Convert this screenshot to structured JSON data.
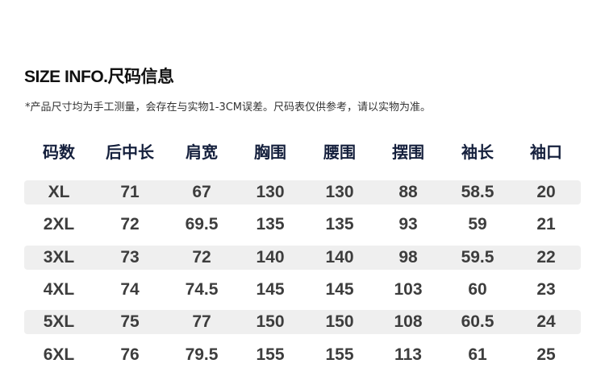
{
  "title": "SIZE INFO.尺码信息",
  "note": "*产品尺寸均为手工测量，会存在与实物1-3CM误差。尺码表仅供参考，请以实物为准。",
  "table": {
    "headers": [
      "码数",
      "后中长",
      "肩宽",
      "胸围",
      "腰围",
      "摆围",
      "袖长",
      "袖口"
    ],
    "rows": [
      [
        "XL",
        "71",
        "67",
        "130",
        "130",
        "88",
        "58.5",
        "20"
      ],
      [
        "2XL",
        "72",
        "69.5",
        "135",
        "135",
        "93",
        "59",
        "21"
      ],
      [
        "3XL",
        "73",
        "72",
        "140",
        "140",
        "98",
        "59.5",
        "22"
      ],
      [
        "4XL",
        "74",
        "74.5",
        "145",
        "145",
        "103",
        "60",
        "23"
      ],
      [
        "5XL",
        "75",
        "77",
        "150",
        "150",
        "108",
        "60.5",
        "24"
      ],
      [
        "6XL",
        "76",
        "79.5",
        "155",
        "155",
        "113",
        "61",
        "25"
      ]
    ]
  }
}
